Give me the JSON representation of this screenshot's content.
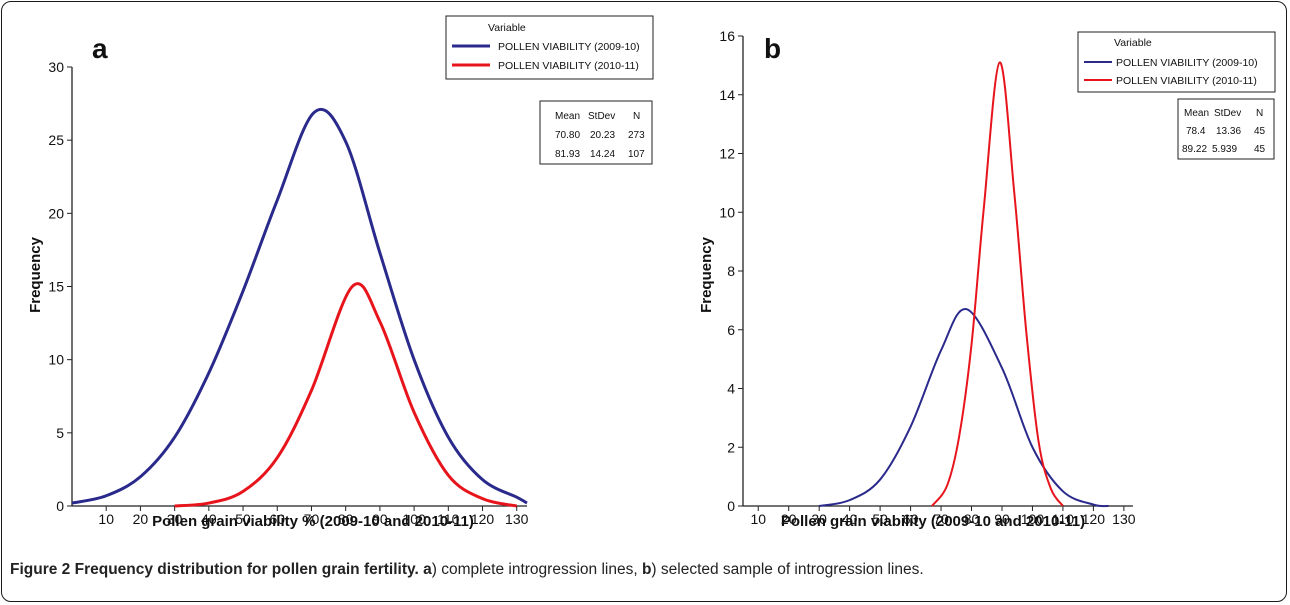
{
  "caption": {
    "figure_label": "Figure 2",
    "title": "Frequency distribution for pollen grain fertility.",
    "part_a_letter": "a",
    "part_a_text": ") complete introgression lines, ",
    "part_b_letter": "b",
    "part_b_text": ") selected sample of introgression lines."
  },
  "chart_data": [
    {
      "panel": "a",
      "type": "line",
      "xlabel": "Pollen grain viability % (2009-10 and 2010-11)",
      "ylabel": "Frequency",
      "xlim": [
        0,
        133
      ],
      "ylim": [
        0,
        30
      ],
      "xticks": [
        10,
        20,
        30,
        40,
        50,
        60,
        70,
        80,
        90,
        100,
        110,
        120,
        130
      ],
      "yticks": [
        0,
        5,
        10,
        15,
        20,
        25,
        30
      ],
      "legend_title": "Variable",
      "legend_position": "top-right",
      "stats_headers": [
        "Mean",
        "StDev",
        "N"
      ],
      "series": [
        {
          "name": "POLLEN VIABILITY (2009-10)",
          "color": "#2a2a8c",
          "x": [
            0,
            10,
            20,
            30,
            40,
            50,
            60,
            70.8,
            80,
            90,
            100,
            110,
            120,
            130,
            133
          ],
          "y": [
            0.2,
            0.7,
            2.0,
            4.7,
            9.1,
            14.7,
            20.9,
            26.9,
            24.9,
            17.3,
            10.0,
            4.7,
            1.8,
            0.6,
            0.2
          ],
          "stats": [
            "70.80",
            "20.23",
            "273"
          ]
        },
        {
          "name": "POLLEN VIABILITY (2010-11)",
          "color": "#e8141c",
          "x": [
            30,
            40,
            50,
            60,
            70,
            81.93,
            90,
            100,
            110,
            120,
            130
          ],
          "y": [
            0,
            0.2,
            1.0,
            3.3,
            7.9,
            15.0,
            12.6,
            6.4,
            2.1,
            0.5,
            0
          ],
          "stats": [
            "81.93",
            "14.24",
            "107"
          ]
        }
      ]
    },
    {
      "panel": "b",
      "type": "line",
      "xlabel": "Pollen grain viability (2009-10 and 2010-11)",
      "ylabel": "Frequency",
      "xlim": [
        5,
        133
      ],
      "ylim": [
        0,
        16
      ],
      "xticks": [
        10,
        20,
        30,
        40,
        50,
        60,
        70,
        80,
        90,
        100,
        110,
        120,
        130
      ],
      "yticks": [
        0,
        2,
        4,
        6,
        8,
        10,
        12,
        14,
        16
      ],
      "legend_title": "Variable",
      "legend_position": "top-right",
      "stats_headers": [
        "Mean",
        "StDev",
        "N"
      ],
      "series": [
        {
          "name": "POLLEN VIABILITY (2009-10)",
          "color": "#2a2a8c",
          "x": [
            30,
            40,
            50,
            60,
            70,
            78.4,
            90,
            100,
            110,
            120,
            125
          ],
          "y": [
            0,
            0.2,
            0.9,
            2.7,
            5.3,
            6.7,
            4.7,
            2.0,
            0.5,
            0.05,
            0
          ],
          "stats": [
            "78.4",
            "13.36",
            "45"
          ]
        },
        {
          "name": "POLLEN VIABILITY (2010-11)",
          "color": "#e8141c",
          "x": [
            67,
            72,
            76,
            80,
            84,
            89.22,
            94,
            98,
            102,
            106,
            110
          ],
          "y": [
            0,
            0.7,
            2.4,
            5.5,
            10.1,
            15.1,
            10.7,
            5.9,
            2.2,
            0.6,
            0
          ],
          "stats": [
            "89.22",
            "5.939",
            "45"
          ]
        }
      ]
    }
  ]
}
